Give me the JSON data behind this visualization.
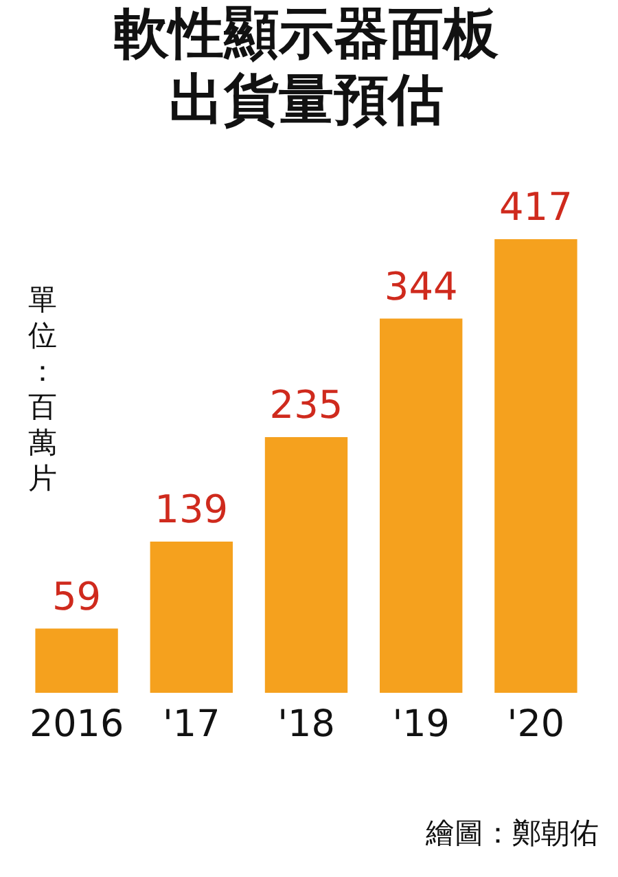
{
  "chart_data": {
    "type": "bar",
    "title": [
      "軟性顯示器面板",
      "出貨量預估"
    ],
    "ylabel": "單位：百萬片",
    "categories": [
      "2016",
      "'17",
      "'18",
      "'19",
      "'20"
    ],
    "values": [
      59,
      139,
      235,
      344,
      417
    ],
    "color": "#f5a11e",
    "data_labels": true,
    "annotations": [
      "繪圖：鄭朝佑"
    ]
  }
}
